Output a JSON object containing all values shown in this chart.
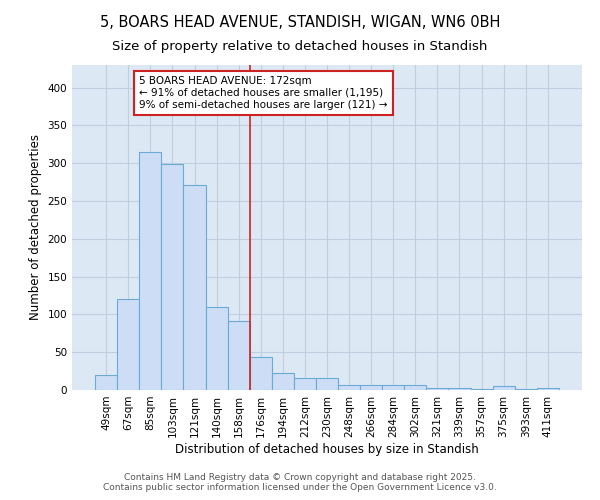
{
  "title1": "5, BOARS HEAD AVENUE, STANDISH, WIGAN, WN6 0BH",
  "title2": "Size of property relative to detached houses in Standish",
  "xlabel": "Distribution of detached houses by size in Standish",
  "ylabel": "Number of detached properties",
  "categories": [
    "49sqm",
    "67sqm",
    "85sqm",
    "103sqm",
    "121sqm",
    "140sqm",
    "158sqm",
    "176sqm",
    "194sqm",
    "212sqm",
    "230sqm",
    "248sqm",
    "266sqm",
    "284sqm",
    "302sqm",
    "321sqm",
    "339sqm",
    "357sqm",
    "375sqm",
    "393sqm",
    "411sqm"
  ],
  "values": [
    20,
    120,
    315,
    299,
    271,
    110,
    91,
    44,
    22,
    16,
    16,
    7,
    6,
    6,
    6,
    2,
    2,
    1,
    5,
    1,
    3
  ],
  "bar_color": "#ccddf5",
  "bar_edge_color": "#6aaad4",
  "vline_color": "#cc2222",
  "annotation_text": "5 BOARS HEAD AVENUE: 172sqm\n← 91% of detached houses are smaller (1,195)\n9% of semi-detached houses are larger (121) →",
  "annotation_box_color": "#ffffff",
  "annotation_box_edge_color": "#cc2222",
  "background_color": "#ffffff",
  "plot_background_color": "#dde8f5",
  "grid_color": "#c0cfe0",
  "footer1": "Contains HM Land Registry data © Crown copyright and database right 2025.",
  "footer2": "Contains public sector information licensed under the Open Government Licence v3.0.",
  "ylim": [
    0,
    430
  ],
  "yticks": [
    0,
    50,
    100,
    150,
    200,
    250,
    300,
    350,
    400
  ],
  "title_fontsize": 10.5,
  "subtitle_fontsize": 9.5,
  "axis_label_fontsize": 8.5,
  "tick_fontsize": 7.5,
  "annotation_fontsize": 7.5,
  "footer_fontsize": 6.5
}
